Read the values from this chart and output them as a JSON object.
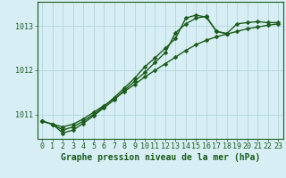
{
  "xlabel": "Graphe pression niveau de la mer (hPa)",
  "background_color": "#d8eef5",
  "grid_color": "#b8d8e0",
  "line_color": "#1a5c1a",
  "xlim": [
    -0.5,
    23.5
  ],
  "ylim": [
    1010.45,
    1013.55
  ],
  "yticks": [
    1011,
    1012,
    1013
  ],
  "xticks": [
    0,
    1,
    2,
    3,
    4,
    5,
    6,
    7,
    8,
    9,
    10,
    11,
    12,
    13,
    14,
    15,
    16,
    17,
    18,
    19,
    20,
    21,
    22,
    23
  ],
  "line1": [
    1010.85,
    1010.78,
    1010.72,
    1010.78,
    1010.9,
    1011.05,
    1011.2,
    1011.35,
    1011.52,
    1011.68,
    1011.85,
    1012.0,
    1012.15,
    1012.3,
    1012.45,
    1012.58,
    1012.68,
    1012.76,
    1012.82,
    1012.88,
    1012.94,
    1012.98,
    1013.02,
    1013.05
  ],
  "line2": [
    1010.85,
    1010.78,
    1010.65,
    1010.72,
    1010.85,
    1011.0,
    1011.18,
    1011.38,
    1011.6,
    1011.82,
    1012.08,
    1012.28,
    1012.5,
    1012.72,
    1013.18,
    1013.25,
    1013.2,
    1012.88,
    1012.83,
    1013.05,
    1013.08,
    1013.1,
    1013.08,
    1013.08
  ],
  "line3": [
    1010.85,
    1010.78,
    1010.58,
    1010.65,
    1010.8,
    1010.97,
    1011.15,
    1011.33,
    1011.55,
    1011.75,
    1011.95,
    1012.18,
    1012.4,
    1012.85,
    1013.05,
    1013.18,
    1013.22,
    1012.88,
    1012.83,
    null,
    null,
    null,
    null,
    null
  ],
  "marker_size": 2.5,
  "line_width": 1.0,
  "xlabel_fontsize": 7,
  "tick_fontsize": 6,
  "xlabel_color": "#1a5c1a",
  "tick_color": "#1a5c1a",
  "axis_color": "#1a5c1a"
}
